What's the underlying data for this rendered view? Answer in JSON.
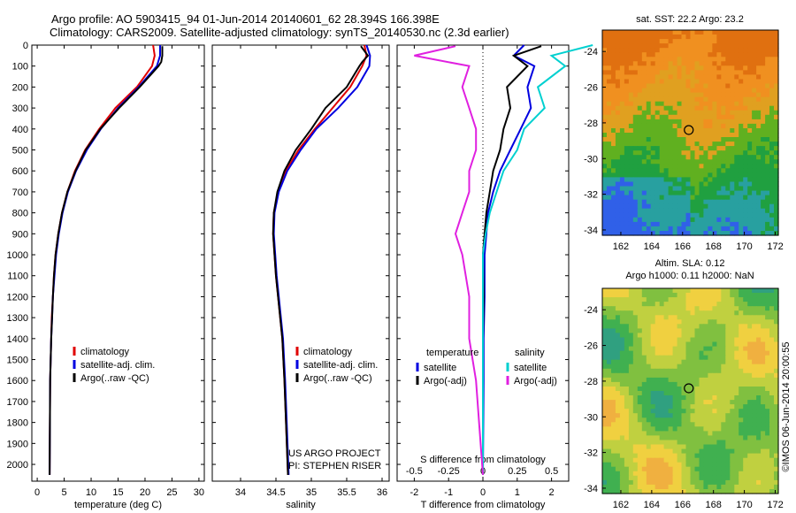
{
  "header": {
    "line1": "Argo profile: AO 5903415_94 01-Jun-2014 20140601_62 28.394S 166.398E",
    "line2": "Climatology: CARS2009. Satellite-adjusted climatology: synTS_20140530.nc (2.3d earlier)"
  },
  "colors": {
    "climatology": "#e00000",
    "satellite": "#0000e0",
    "argo": "#000000",
    "temp_diff_sat": "#00e0e0",
    "sal_diff": "#e020e0"
  },
  "chart_data": [
    {
      "type": "line",
      "name": "temperature-profile",
      "xlabel": "temperature (deg C)",
      "ylabel": "",
      "xlim": [
        -1,
        31
      ],
      "ylim": [
        2080,
        0
      ],
      "xticks": [
        0,
        5,
        10,
        15,
        20,
        25,
        30
      ],
      "yticks": [
        0,
        100,
        200,
        300,
        400,
        500,
        600,
        700,
        800,
        900,
        1000,
        1100,
        1200,
        1300,
        1400,
        1500,
        1600,
        1700,
        1800,
        1900,
        2000
      ],
      "legend": [
        "climatology",
        "satellite-adj. clim.",
        "Argo(..raw -QC)"
      ],
      "series": [
        {
          "name": "climatology",
          "color": "#e00000",
          "x": [
            21.5,
            21.8,
            21.3,
            18.5,
            14.5,
            11.5,
            8.9,
            7.0,
            5.6,
            4.6,
            3.9,
            3.4,
            3.1,
            2.9,
            2.7,
            2.6,
            2.5,
            2.4,
            2.3
          ],
          "y": [
            0,
            50,
            100,
            200,
            300,
            400,
            500,
            600,
            700,
            800,
            900,
            1000,
            1100,
            1200,
            1300,
            1400,
            1500,
            1600,
            2050
          ]
        },
        {
          "name": "satellite-adj. clim.",
          "color": "#0000e0",
          "x": [
            22.8,
            22.8,
            22.2,
            18.8,
            15.0,
            11.8,
            9.2,
            7.2,
            5.7,
            4.7,
            4.0,
            3.5,
            3.2,
            2.9,
            2.75,
            2.6,
            2.5,
            2.4,
            2.3
          ],
          "y": [
            0,
            50,
            100,
            200,
            300,
            400,
            500,
            600,
            700,
            800,
            900,
            1000,
            1100,
            1200,
            1300,
            1400,
            1500,
            1600,
            2050
          ]
        },
        {
          "name": "Argo(..raw -QC)",
          "color": "#000000",
          "x": [
            23.2,
            23.2,
            23.0,
            22.5,
            19.0,
            15.2,
            11.7,
            9.0,
            7.1,
            5.6,
            4.6,
            3.9,
            3.4,
            3.1,
            2.9,
            2.75,
            2.6,
            2.5,
            2.4,
            2.3
          ],
          "y": [
            5,
            50,
            80,
            100,
            200,
            300,
            400,
            500,
            600,
            700,
            800,
            900,
            1000,
            1100,
            1200,
            1300,
            1400,
            1500,
            1600,
            2050
          ]
        }
      ]
    },
    {
      "type": "line",
      "name": "salinity-profile",
      "xlabel": "salinity",
      "xlim": [
        33.6,
        36.1
      ],
      "ylim": [
        2080,
        0
      ],
      "xticks": [
        34,
        34.5,
        35,
        35.5,
        36
      ],
      "xtick_labels": [
        "34",
        "34.5",
        "35",
        "35.5",
        "36"
      ],
      "legend": [
        "climatology",
        "satellite-adj. clim.",
        "Argo(..raw -QC)"
      ],
      "series": [
        {
          "name": "climatology",
          "color": "#e00000",
          "x": [
            35.75,
            35.78,
            35.72,
            35.55,
            35.3,
            35.05,
            34.82,
            34.64,
            34.53,
            34.47,
            34.46,
            34.48,
            34.5,
            34.53,
            34.56,
            34.59,
            34.62,
            34.67
          ],
          "y": [
            0,
            50,
            100,
            200,
            300,
            400,
            500,
            600,
            700,
            800,
            900,
            1000,
            1100,
            1200,
            1300,
            1400,
            1600,
            2050
          ]
        },
        {
          "name": "satellite-adj. clim.",
          "color": "#0000e0",
          "x": [
            35.78,
            35.83,
            35.82,
            35.65,
            35.38,
            35.07,
            34.85,
            34.66,
            34.54,
            34.48,
            34.47,
            34.49,
            34.51,
            34.54,
            34.57,
            34.6,
            34.63,
            34.68
          ],
          "y": [
            0,
            50,
            100,
            200,
            300,
            400,
            500,
            600,
            700,
            800,
            900,
            1000,
            1100,
            1200,
            1300,
            1400,
            1600,
            2050
          ]
        },
        {
          "name": "Argo(..raw -QC)",
          "color": "#000000",
          "x": [
            35.7,
            35.8,
            35.72,
            35.68,
            35.5,
            35.2,
            35.0,
            34.78,
            34.62,
            34.52,
            34.47,
            34.46,
            34.48,
            34.5,
            34.53,
            34.56,
            34.59,
            34.62,
            34.67
          ],
          "y": [
            5,
            50,
            80,
            100,
            200,
            300,
            400,
            500,
            600,
            700,
            800,
            900,
            1000,
            1100,
            1200,
            1300,
            1400,
            1600,
            2050
          ]
        }
      ],
      "annotations": [
        "US ARGO PROJECT",
        "PI: STEPHEN RISER"
      ]
    },
    {
      "type": "line",
      "name": "difference-profile",
      "xlabel_bottom": "T difference from climatology",
      "xlabel_top": "S difference from climatology",
      "xlim": [
        -2.5,
        2.5
      ],
      "ylim": [
        2080,
        0
      ],
      "xticks": [
        -2,
        -1,
        0,
        1,
        2
      ],
      "s_ticks": [
        -0.5,
        -0.25,
        0,
        0.25,
        0.5
      ],
      "s_tick_labels": [
        "-0.5",
        "-0.25",
        "0",
        "0.25",
        "0.5"
      ],
      "legend_headers": [
        "temperature",
        "salinity"
      ],
      "legend": [
        "satellite",
        "Argo(-adj)",
        "satellite",
        "Argo(-adj)"
      ],
      "series": [
        {
          "name": "satellite",
          "group": "temperature",
          "color": "#0000e0",
          "x": [
            1.2,
            0.9,
            1.5,
            1.3,
            1.4,
            1.1,
            0.8,
            0.5,
            0.3,
            0.15,
            0.1,
            0.05,
            0.05,
            0.02,
            0.02,
            0.0
          ],
          "y": [
            0,
            50,
            100,
            200,
            300,
            400,
            500,
            600,
            700,
            800,
            900,
            1000,
            1200,
            1400,
            1600,
            2050
          ]
        },
        {
          "name": "Argo(-adj)",
          "group": "temperature",
          "color": "#000000",
          "x": [
            1.7,
            0.9,
            1.3,
            0.7,
            0.8,
            0.6,
            0.5,
            0.3,
            0.2,
            0.1,
            0.05,
            0.0,
            0.02,
            0.0,
            0.0,
            0.0
          ],
          "y": [
            5,
            50,
            100,
            200,
            300,
            400,
            500,
            600,
            700,
            800,
            900,
            1000,
            1200,
            1400,
            1600,
            2050
          ]
        },
        {
          "name": "satellite",
          "group": "salinity",
          "color": "#00d0d0",
          "x": [
            0.8,
            0.5,
            0.6,
            0.4,
            0.45,
            0.3,
            0.25,
            0.15,
            0.1,
            0.05,
            0.02,
            0.0,
            0.0,
            0.0
          ],
          "y": [
            0,
            50,
            100,
            200,
            300,
            400,
            500,
            600,
            700,
            800,
            900,
            1000,
            1400,
            2050
          ]
        },
        {
          "name": "Argo(-adj)",
          "group": "salinity",
          "color": "#e020e0",
          "x": [
            -0.2,
            -0.5,
            -0.1,
            -0.15,
            -0.1,
            -0.05,
            -0.05,
            -0.1,
            -0.1,
            -0.15,
            -0.2,
            -0.15,
            -0.1,
            -0.1,
            -0.05,
            0.0
          ],
          "y": [
            5,
            50,
            100,
            200,
            300,
            400,
            500,
            600,
            700,
            800,
            900,
            1000,
            1200,
            1400,
            1600,
            2050
          ]
        }
      ]
    },
    {
      "type": "heatmap",
      "name": "sst-map",
      "title": "sat. SST: 22.2 Argo: 23.2",
      "xlim": [
        160.8,
        172.2
      ],
      "ylim": [
        -34.3,
        -22.8
      ],
      "xticks": [
        162,
        164,
        166,
        168,
        170,
        172
      ],
      "yticks": [
        -24,
        -26,
        -28,
        -30,
        -32,
        -34
      ],
      "marker": {
        "x": 166.4,
        "y": -28.4
      },
      "palette": [
        "#3060e8",
        "#28a0a0",
        "#20a040",
        "#60b020",
        "#e0a020",
        "#f09020",
        "#e07010"
      ]
    },
    {
      "type": "heatmap",
      "name": "sla-map",
      "title": "Altim. SLA: 0.12",
      "subtitle": "Argo h1000: 0.11 h2000: NaN",
      "xlim": [
        160.8,
        172.2
      ],
      "ylim": [
        -34.3,
        -22.8
      ],
      "xticks": [
        162,
        164,
        166,
        168,
        170,
        172
      ],
      "yticks": [
        -24,
        -26,
        -28,
        -30,
        -32,
        -34
      ],
      "marker": {
        "x": 166.4,
        "y": -28.4
      },
      "palette": [
        "#30a080",
        "#40b050",
        "#80c040",
        "#c0d040",
        "#f0d040",
        "#f0b040"
      ]
    }
  ],
  "side_label": "©IMOS 06-Jun-2014 20:00:55"
}
